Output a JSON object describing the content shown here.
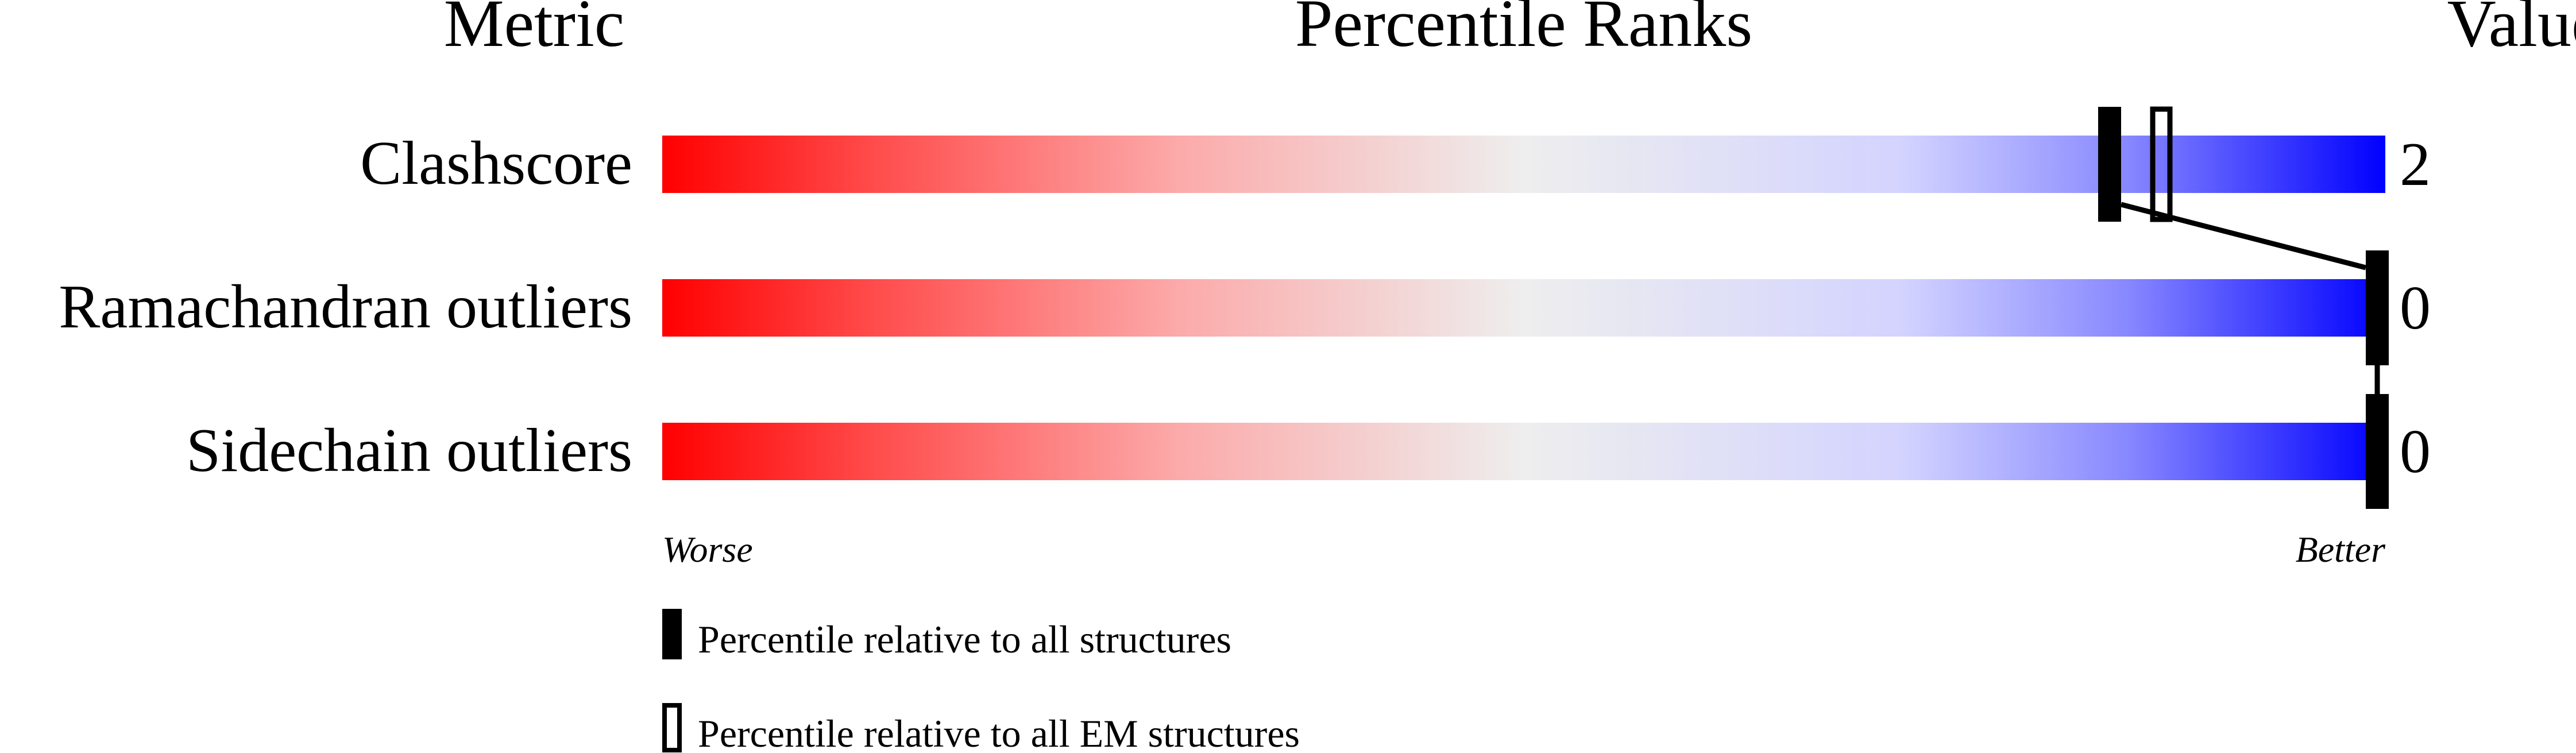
{
  "chart_data": {
    "type": "percentile-bar",
    "headers": {
      "metric": "Metric",
      "ranks": "Percentile Ranks",
      "value": "Value"
    },
    "xlim": [
      0,
      100
    ],
    "gradient": {
      "worse_color": "#ff0000",
      "middle_color": "#eeeeee",
      "better_color": "#0000ff"
    },
    "metrics": [
      {
        "label": "Clashscore",
        "value": "2",
        "percentile_all": 84,
        "percentile_em": 87
      },
      {
        "label": "Ramachandran outliers",
        "value": "0",
        "percentile_all": 100,
        "percentile_em": null
      },
      {
        "label": "Sidechain outliers",
        "value": "0",
        "percentile_all": 100,
        "percentile_em": null
      }
    ],
    "axis": {
      "left_label": "Worse",
      "right_label": "Better"
    },
    "legend": [
      {
        "marker": "filled",
        "label": "Percentile relative to all structures"
      },
      {
        "marker": "open",
        "label": "Percentile relative to all EM structures"
      }
    ]
  }
}
